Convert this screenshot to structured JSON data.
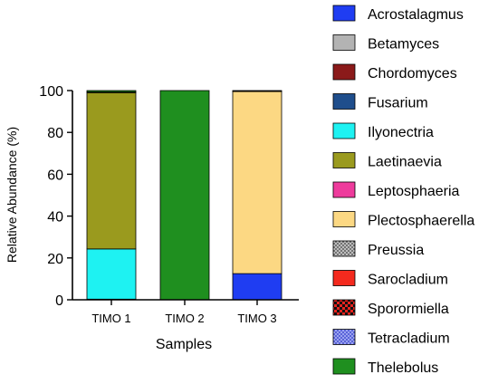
{
  "chart_data": {
    "type": "bar",
    "stacked": true,
    "categories": [
      "TIMO 1",
      "TIMO 2",
      "TIMO 3"
    ],
    "xlabel": "Samples",
    "ylabel": "Relative Abundance (%)",
    "ylim": [
      0,
      100
    ],
    "yticks": [
      "0",
      "20",
      "40",
      "60",
      "80",
      "100"
    ],
    "grid": false,
    "legend_position": "right",
    "series": [
      {
        "name": "Acrostalagmus",
        "color": "#1f3df2",
        "pattern": "solid",
        "values": [
          0,
          0,
          12.5
        ]
      },
      {
        "name": "Betamyces",
        "color": "#b3b3b3",
        "pattern": "solid",
        "values": [
          0,
          0,
          0
        ]
      },
      {
        "name": "Chordomyces",
        "color": "#8b1a1a",
        "pattern": "solid",
        "values": [
          0.3,
          0,
          0
        ]
      },
      {
        "name": "Fusarium",
        "color": "#1f4e8c",
        "pattern": "solid",
        "values": [
          0,
          0,
          0
        ]
      },
      {
        "name": "Ilyonectria",
        "color": "#1ef2f2",
        "pattern": "solid",
        "values": [
          24,
          0,
          0
        ]
      },
      {
        "name": "Laetinaevia",
        "color": "#9a9a1e",
        "pattern": "solid",
        "values": [
          74.7,
          0,
          0
        ]
      },
      {
        "name": "Leptosphaeria",
        "color": "#ee3b9c",
        "pattern": "solid",
        "values": [
          0.3,
          0,
          0
        ]
      },
      {
        "name": "Plectosphaerella",
        "color": "#fcd883",
        "pattern": "solid",
        "values": [
          0,
          0,
          87.1
        ]
      },
      {
        "name": "Preussia",
        "color": "#8a8a8a",
        "pattern": "dots",
        "values": [
          0,
          0,
          0
        ]
      },
      {
        "name": "Sarocladium",
        "color": "#f42a1e",
        "pattern": "solid",
        "values": [
          0,
          0,
          0
        ]
      },
      {
        "name": "Sporormiella",
        "color": "#e6231e",
        "pattern": "checker",
        "values": [
          0,
          0,
          0.2
        ]
      },
      {
        "name": "Tetracladium",
        "color": "#3f4de0",
        "pattern": "dots-blue",
        "values": [
          0,
          0,
          0.2
        ]
      },
      {
        "name": "Thelebolus",
        "color": "#1f8f1f",
        "pattern": "solid",
        "values": [
          0.7,
          100,
          0
        ]
      }
    ]
  }
}
